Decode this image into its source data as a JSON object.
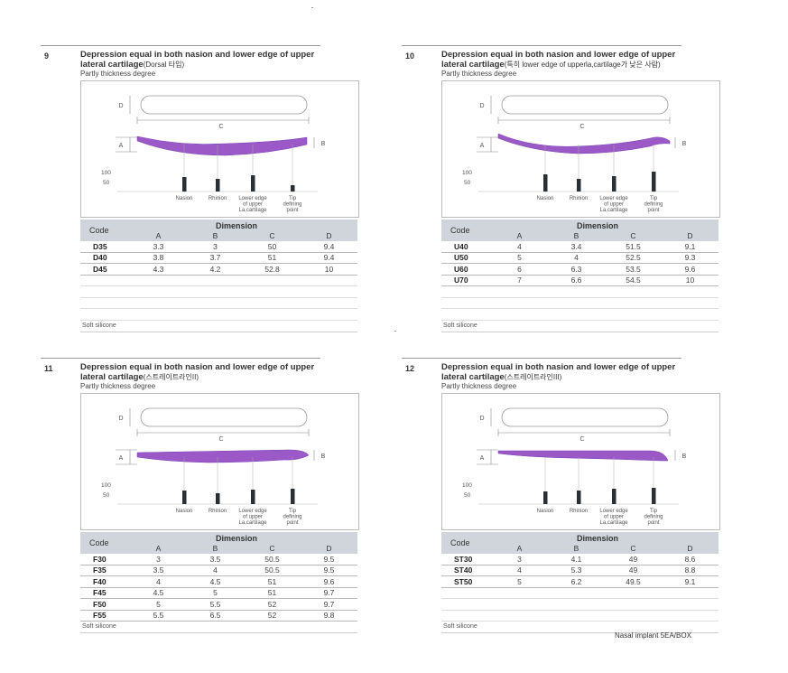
{
  "common": {
    "subtitle": "Partly thickness degree",
    "code_header": "Code",
    "dimension_header": "Dimension",
    "dim_letters": [
      "A",
      "B",
      "C",
      "D"
    ],
    "material": "Soft silicone",
    "scale_labels": [
      "100",
      "50"
    ],
    "point_labels": [
      "Nasion",
      "Rhinion",
      "Lower edge of upper La,cartilage",
      "Tip defining point"
    ],
    "colors": {
      "implant": "#9b59c8",
      "header": "#cfd5da"
    }
  },
  "panels": [
    {
      "number": "9",
      "title": "Depression equal in both nasion and lower edge of upper lateral cartilage",
      "suffix": "(Dorsal 타입)",
      "bars": [
        72,
        62,
        80,
        32
      ],
      "rows": [
        {
          "code": "D35",
          "A": "3.3",
          "B": "3",
          "C": "50",
          "D": "9.4"
        },
        {
          "code": "D40",
          "A": "3.8",
          "B": "3.7",
          "C": "51",
          "D": "9.4"
        },
        {
          "code": "D45",
          "A": "4.3",
          "B": "4.2",
          "C": "52.8",
          "D": "10"
        }
      ]
    },
    {
      "number": "10",
      "title": "Depression equal in both nasion and lower edge of upper lateral cartilage",
      "suffix": "(특히 lower edge of upperla,cartilage가 낮은 사람)",
      "bars": [
        85,
        62,
        75,
        100
      ],
      "rows": [
        {
          "code": "U40",
          "A": "4",
          "B": "3.4",
          "C": "51.5",
          "D": "9.1"
        },
        {
          "code": "U50",
          "A": "5",
          "B": "4",
          "C": "52.5",
          "D": "9.3"
        },
        {
          "code": "U60",
          "A": "6",
          "B": "6.3",
          "C": "53.5",
          "D": "9.6"
        },
        {
          "code": "U70",
          "A": "7",
          "B": "6.6",
          "C": "54.5",
          "D": "10"
        }
      ]
    },
    {
      "number": "11",
      "title": "Depression equal in both nasion and lower edge of upper lateral cartilage",
      "suffix": "(스트레이트라인II)",
      "bars": [
        70,
        55,
        72,
        75
      ],
      "rows": [
        {
          "code": "F30",
          "A": "3",
          "B": "3.5",
          "C": "50.5",
          "D": "9.5"
        },
        {
          "code": "F35",
          "A": "3.5",
          "B": "4",
          "C": "50.5",
          "D": "9.5"
        },
        {
          "code": "F40",
          "A": "4",
          "B": "4.5",
          "C": "51",
          "D": "9.6"
        },
        {
          "code": "F45",
          "A": "4.5",
          "B": "5",
          "C": "51",
          "D": "9.7"
        },
        {
          "code": "F50",
          "A": "5",
          "B": "5.5",
          "C": "52",
          "D": "9.7"
        },
        {
          "code": "F55",
          "A": "5.5",
          "B": "6.5",
          "C": "52",
          "D": "9.8"
        }
      ]
    },
    {
      "number": "12",
      "title": "Depression equal in both nasion and lower edge of upper lateral cartilage",
      "suffix": "(스트레이트라인III)",
      "bars": [
        62,
        68,
        75,
        80
      ],
      "rows": [
        {
          "code": "ST30",
          "A": "3",
          "B": "4.1",
          "C": "49",
          "D": "8.6"
        },
        {
          "code": "ST40",
          "A": "4",
          "B": "5.3",
          "C": "49",
          "D": "8.8"
        },
        {
          "code": "ST50",
          "A": "5",
          "B": "6.2",
          "C": "49.5",
          "D": "9.1"
        }
      ]
    }
  ],
  "footer": "Nasal implant  5EA/BOX"
}
